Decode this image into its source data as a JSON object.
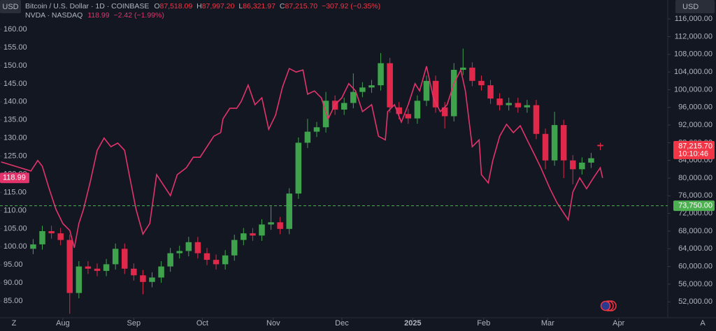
{
  "chart_data": {
    "type": "candlestick",
    "header": {
      "ohlc": [
        {
          "key": "O",
          "value": "87,518.09"
        },
        {
          "key": "H",
          "value": "87,997.20"
        },
        {
          "key": "L",
          "value": "86,321.97"
        },
        {
          "key": "C",
          "value": "87,215.70"
        }
      ],
      "change": "−307.92 (−0.35%)",
      "overlay_last": "118.99",
      "overlay_change": "−2.42 (−1.99%)",
      "currency_left": "USD",
      "currency_right": "USD",
      "scale_left": "Z",
      "scale_right": "A"
    },
    "xlim": [
      -27.5,
      264.5
    ],
    "xticks": [
      {
        "value": 0,
        "label": "Aug"
      },
      {
        "value": 31,
        "label": "Sep"
      },
      {
        "value": 61,
        "label": "Oct"
      },
      {
        "value": 92,
        "label": "Nov"
      },
      {
        "value": 122,
        "label": "Dec"
      },
      {
        "value": 153,
        "label": "2025"
      },
      {
        "value": 184,
        "label": "Feb"
      },
      {
        "value": 212,
        "label": "Mar"
      },
      {
        "value": 243,
        "label": "Apr"
      }
    ],
    "ylim": [
      80.4,
      168.1
    ],
    "yticks": [
      {
        "value": 85,
        "label": "85.00"
      },
      {
        "value": 90,
        "label": "90.00"
      },
      {
        "value": 95,
        "label": "95.00"
      },
      {
        "value": 100,
        "label": "100.00"
      },
      {
        "value": 105,
        "label": "105.00"
      },
      {
        "value": 110,
        "label": "110.00"
      },
      {
        "value": 115,
        "label": "115.00"
      },
      {
        "value": 120,
        "label": "120.00"
      },
      {
        "value": 125,
        "label": "125.00"
      },
      {
        "value": 130,
        "label": "130.00"
      },
      {
        "value": 135,
        "label": "135.00"
      },
      {
        "value": 140,
        "label": "140.00"
      },
      {
        "value": 145,
        "label": "145.00"
      },
      {
        "value": 150,
        "label": "150.00"
      },
      {
        "value": 155,
        "label": "155.00"
      },
      {
        "value": 160,
        "label": "160.00"
      }
    ],
    "y2lim": [
      48400,
      120300
    ],
    "y2ticks": [
      {
        "value": 52000,
        "label": "52,000.00"
      },
      {
        "value": 56000,
        "label": "56,000.00"
      },
      {
        "value": 60000,
        "label": "60,000.00"
      },
      {
        "value": 64000,
        "label": "64,000.00"
      },
      {
        "value": 68000,
        "label": "68,000.00"
      },
      {
        "value": 72000,
        "label": "72,000.00"
      },
      {
        "value": 76000,
        "label": "76,000.00"
      },
      {
        "value": 80000,
        "label": "80,000.00"
      },
      {
        "value": 84000,
        "label": "84,000.00"
      },
      {
        "value": 88000,
        "label": "88,000.00"
      },
      {
        "value": 92000,
        "label": "92,000.00"
      },
      {
        "value": 96000,
        "label": "96,000.00"
      },
      {
        "value": 100000,
        "label": "100,000.00"
      },
      {
        "value": 104000,
        "label": "104,000.00"
      },
      {
        "value": 108000,
        "label": "108,000.00"
      },
      {
        "value": 112000,
        "label": "112,000.00"
      },
      {
        "value": 116000,
        "label": "116,000.00"
      }
    ],
    "series": [
      {
        "name": "Bitcoin / U.S. Dollar · 1D · COINBASE",
        "type": "candlestick",
        "axis": "y2",
        "up_color": "#3fa34d",
        "down_color": "#e0294a",
        "x": [
          -13,
          -9,
          -5,
          -1,
          3,
          7,
          11,
          15,
          19,
          23,
          27,
          31,
          35,
          39,
          43,
          47,
          51,
          55,
          59,
          63,
          67,
          71,
          75,
          79,
          83,
          87,
          91,
          95,
          99,
          103,
          107,
          111,
          115,
          119,
          123,
          127,
          131,
          135,
          139,
          143,
          147,
          151,
          155,
          159,
          163,
          167,
          171,
          175,
          179,
          183,
          187,
          191,
          195,
          199,
          203,
          207,
          211,
          215,
          219,
          223,
          227,
          231,
          235
        ],
        "open": [
          64000,
          65000,
          68000,
          67500,
          66000,
          54000,
          60000,
          59500,
          59000,
          60500,
          64000,
          59500,
          58000,
          56500,
          57500,
          60000,
          63000,
          63500,
          65500,
          63000,
          61500,
          60500,
          62500,
          66000,
          67500,
          67000,
          69500,
          70000,
          68500,
          76500,
          88000,
          90500,
          91500,
          97500,
          95500,
          97000,
          99500,
          100500,
          101000,
          106000,
          96000,
          94500,
          93500,
          97500,
          102000,
          96000,
          94000,
          104500,
          105000,
          102000,
          101000,
          98000,
          96500,
          97000,
          96000,
          96500,
          90000,
          84000,
          92000,
          84000,
          82000,
          83500,
          87518.09
        ],
        "high": [
          66200,
          69200,
          69200,
          68700,
          67200,
          61200,
          61200,
          60700,
          61700,
          65200,
          65200,
          60700,
          59200,
          58700,
          61200,
          64200,
          64700,
          66700,
          66700,
          64200,
          62700,
          63700,
          67200,
          68700,
          68700,
          70700,
          73600,
          71200,
          77700,
          89200,
          93400,
          92700,
          99500,
          98700,
          98200,
          103700,
          101700,
          102200,
          108300,
          107200,
          97200,
          95700,
          98700,
          103200,
          103200,
          97200,
          106000,
          109300,
          106200,
          103200,
          102200,
          99200,
          98200,
          98200,
          97700,
          97700,
          91200,
          95000,
          93200,
          85200,
          84700,
          85700,
          87997.2
        ],
        "low": [
          62800,
          63800,
          66300,
          64800,
          49300,
          52800,
          58300,
          57800,
          57800,
          59300,
          58300,
          56800,
          53700,
          55300,
          56300,
          58800,
          61800,
          62300,
          61800,
          60300,
          59300,
          59300,
          61300,
          64800,
          65800,
          65800,
          68300,
          67300,
          67300,
          75300,
          86800,
          89300,
          90300,
          94300,
          94300,
          95800,
          98300,
          99300,
          99800,
          94800,
          93300,
          92300,
          92300,
          96300,
          94800,
          91200,
          92800,
          103300,
          100800,
          99800,
          96800,
          95300,
          95300,
          94800,
          94800,
          88800,
          82000,
          82800,
          80000,
          78600,
          80800,
          82300,
          86321.97
        ],
        "close": [
          65000,
          68000,
          67500,
          66000,
          54000,
          60000,
          59500,
          59000,
          60500,
          64000,
          59500,
          58000,
          56500,
          57500,
          60000,
          63000,
          63500,
          65500,
          63000,
          61500,
          60500,
          62500,
          66000,
          67500,
          67000,
          69500,
          70000,
          68500,
          76500,
          88000,
          90500,
          91500,
          97500,
          95500,
          97000,
          99500,
          100500,
          101000,
          106000,
          96000,
          94500,
          93500,
          97500,
          102000,
          96000,
          94000,
          104500,
          105000,
          102000,
          101000,
          98000,
          96500,
          97000,
          96000,
          96500,
          90000,
          84000,
          92000,
          84000,
          82000,
          83500,
          84500,
          87215.7
        ]
      },
      {
        "name": "NVDA · NASDAQ",
        "type": "line",
        "axis": "y",
        "color": "#e2336b",
        "x": [
          -27,
          -14,
          -11,
          -9,
          -6,
          -3,
          0,
          3,
          5,
          7,
          9,
          12,
          15,
          18,
          21,
          24,
          27,
          29,
          32,
          35,
          38,
          41,
          44,
          47,
          50,
          54,
          57,
          60,
          63,
          66,
          69,
          70,
          73,
          76,
          78,
          81,
          84,
          87,
          90,
          93,
          96,
          99,
          102,
          105,
          107,
          110,
          113,
          116,
          119,
          122,
          125,
          128,
          131,
          135,
          138,
          141,
          142,
          145,
          148,
          151,
          154,
          156,
          159,
          162,
          165,
          168,
          171,
          174,
          176,
          179,
          182,
          183,
          186,
          188,
          191,
          194,
          197,
          200,
          203,
          206,
          209,
          213,
          216,
          219,
          221,
          223,
          226,
          229,
          232,
          235,
          236
        ],
        "values": [
          123.4,
          120.9,
          123.8,
          122.2,
          116.0,
          110.3,
          106.4,
          104.5,
          99.7,
          106.4,
          110.3,
          118.0,
          126.6,
          130.0,
          127.6,
          128.6,
          126.6,
          119.9,
          110.3,
          103.5,
          106.4,
          119.9,
          117.0,
          114.1,
          119.9,
          121.8,
          124.7,
          124.7,
          127.6,
          130.5,
          131.5,
          135.3,
          138.2,
          138.2,
          140.1,
          144.6,
          139.2,
          141.1,
          132.4,
          136.3,
          144.0,
          149.2,
          148.2,
          148.8,
          142.1,
          143.0,
          141.1,
          135.3,
          139.2,
          141.1,
          145.0,
          143.0,
          137.3,
          139.2,
          130.5,
          129.5,
          137.3,
          139.2,
          134.4,
          139.2,
          145.0,
          143.0,
          149.8,
          141.1,
          137.3,
          139.2,
          145.0,
          148.8,
          143.0,
          127.6,
          129.5,
          119.9,
          117.6,
          123.8,
          130.5,
          133.8,
          131.5,
          133.4,
          129.5,
          125.7,
          121.8,
          116.0,
          112.2,
          109.3,
          107.4,
          115.1,
          119.0,
          116.0,
          119.0,
          121.8,
          118.99
        ]
      }
    ],
    "price_labels": [
      {
        "axis": "y2",
        "value": 87215.7,
        "label": "87,215.70",
        "countdown": "10:10:46",
        "color": "#f23645"
      },
      {
        "axis": "y2",
        "value": 73750,
        "label": "73,750.00",
        "color": "#4caf50",
        "line": "dashed"
      },
      {
        "axis": "y",
        "value": 118.99,
        "label": "118.99",
        "color": "#e2336b"
      }
    ]
  }
}
